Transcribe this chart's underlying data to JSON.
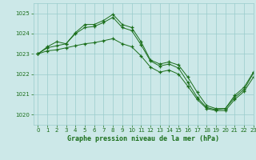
{
  "title": "Graphe pression niveau de la mer (hPa)",
  "xlim": [
    -0.5,
    23
  ],
  "ylim": [
    1019.5,
    1025.5
  ],
  "yticks": [
    1020,
    1021,
    1022,
    1023,
    1024,
    1025
  ],
  "xticks": [
    0,
    1,
    2,
    3,
    4,
    5,
    6,
    7,
    8,
    9,
    10,
    11,
    12,
    13,
    14,
    15,
    16,
    17,
    18,
    19,
    20,
    21,
    22,
    23
  ],
  "background_color": "#cce8e8",
  "grid_color": "#99cccc",
  "line_color": "#1a6e1a",
  "series": [
    {
      "x": [
        0,
        1,
        2,
        3,
        4,
        5,
        6,
        7,
        8,
        9,
        10,
        11,
        12,
        13,
        14,
        15,
        16,
        17,
        18,
        19,
        20,
        21,
        22,
        23
      ],
      "y": [
        1023.0,
        1023.3,
        1023.4,
        1023.5,
        1024.05,
        1024.45,
        1024.45,
        1024.65,
        1024.95,
        1024.45,
        1024.3,
        1023.6,
        1022.7,
        1022.5,
        1022.6,
        1022.45,
        1021.85,
        1021.1,
        1020.45,
        1020.3,
        1020.3,
        1020.95,
        1021.35,
        1022.1
      ]
    },
    {
      "x": [
        0,
        1,
        2,
        3,
        4,
        5,
        6,
        7,
        8,
        9,
        10,
        11,
        12,
        13,
        14,
        15,
        16,
        17,
        18,
        19,
        20,
        21,
        22,
        23
      ],
      "y": [
        1023.0,
        1023.35,
        1023.6,
        1023.5,
        1024.0,
        1024.3,
        1024.35,
        1024.55,
        1024.8,
        1024.3,
        1024.15,
        1023.45,
        1022.65,
        1022.4,
        1022.5,
        1022.3,
        1021.6,
        1020.85,
        1020.35,
        1020.25,
        1020.3,
        1020.85,
        1021.25,
        1022.05
      ]
    },
    {
      "x": [
        0,
        1,
        2,
        3,
        4,
        5,
        6,
        7,
        8,
        9,
        10,
        11,
        12,
        13,
        14,
        15,
        16,
        17,
        18,
        19,
        20,
        21,
        22,
        23
      ],
      "y": [
        1023.0,
        1023.15,
        1023.2,
        1023.3,
        1023.4,
        1023.5,
        1023.55,
        1023.65,
        1023.75,
        1023.5,
        1023.35,
        1022.9,
        1022.35,
        1022.1,
        1022.2,
        1022.0,
        1021.4,
        1020.75,
        1020.3,
        1020.2,
        1020.2,
        1020.75,
        1021.15,
        1021.85
      ]
    }
  ]
}
